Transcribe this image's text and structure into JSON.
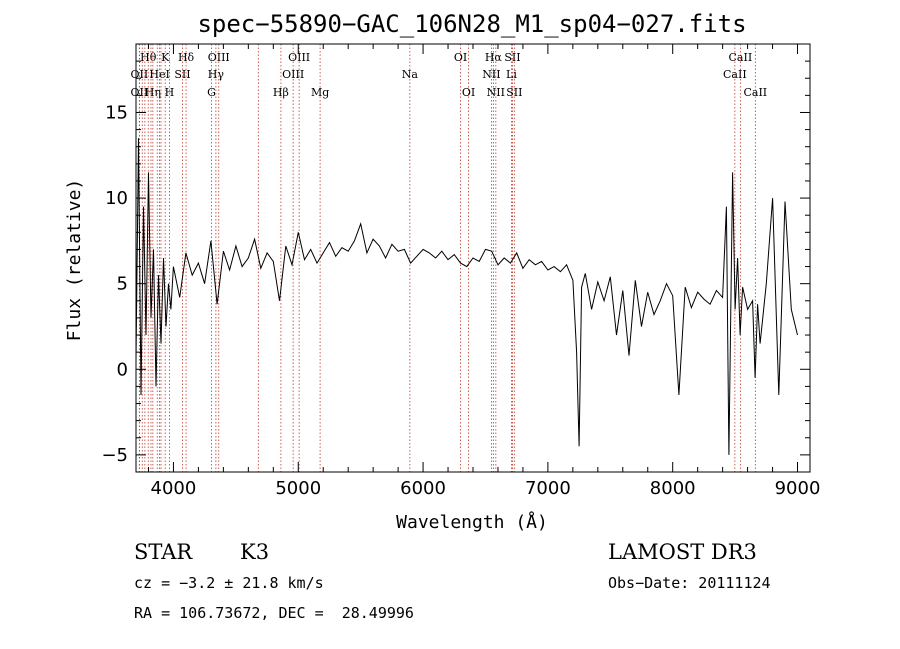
{
  "chart_data": {
    "type": "line",
    "title": "spec−55890−GAC_106N28_M1_sp04−027.fits",
    "xlabel": "Wavelength (Å)",
    "ylabel": "Flux (relative)",
    "xlim": [
      3700,
      9100
    ],
    "ylim": [
      -6,
      19
    ],
    "xticks": [
      4000,
      5000,
      6000,
      7000,
      8000,
      9000
    ],
    "yticks": [
      -5,
      0,
      5,
      10,
      15
    ],
    "spectrum": {
      "name": "flux",
      "x": [
        3700,
        3720,
        3740,
        3760,
        3780,
        3800,
        3820,
        3840,
        3860,
        3880,
        3900,
        3920,
        3940,
        3960,
        3980,
        4000,
        4050,
        4100,
        4150,
        4200,
        4250,
        4300,
        4350,
        4400,
        4450,
        4500,
        4550,
        4600,
        4650,
        4700,
        4750,
        4800,
        4850,
        4900,
        4950,
        5000,
        5050,
        5100,
        5150,
        5200,
        5250,
        5300,
        5350,
        5400,
        5450,
        5500,
        5550,
        5600,
        5650,
        5700,
        5750,
        5800,
        5850,
        5900,
        5950,
        6000,
        6050,
        6100,
        6150,
        6200,
        6250,
        6300,
        6350,
        6400,
        6450,
        6500,
        6550,
        6600,
        6650,
        6700,
        6750,
        6800,
        6850,
        6900,
        6950,
        7000,
        7050,
        7100,
        7150,
        7200,
        7230,
        7250,
        7270,
        7300,
        7350,
        7400,
        7450,
        7500,
        7550,
        7600,
        7650,
        7700,
        7750,
        7800,
        7850,
        7900,
        7950,
        8000,
        8050,
        8100,
        8150,
        8200,
        8250,
        8300,
        8350,
        8400,
        8430,
        8450,
        8480,
        8500,
        8520,
        8540,
        8560,
        8600,
        8640,
        8660,
        8680,
        8700,
        8750,
        8800,
        8850,
        8900,
        8950,
        9000
      ],
      "y": [
        0.5,
        13.5,
        -1.5,
        9.5,
        2.0,
        11.5,
        3.0,
        7.0,
        -1.0,
        5.5,
        1.5,
        6.5,
        2.5,
        5.0,
        3.5,
        6.0,
        4.2,
        6.8,
        5.5,
        6.2,
        5.0,
        7.5,
        3.8,
        6.9,
        5.8,
        7.2,
        6.0,
        6.5,
        7.6,
        5.9,
        6.8,
        6.3,
        4.0,
        7.2,
        6.1,
        8.0,
        6.4,
        7.0,
        6.2,
        6.8,
        7.4,
        6.6,
        7.1,
        6.9,
        7.5,
        8.5,
        6.8,
        7.6,
        7.2,
        6.5,
        7.3,
        6.9,
        7.0,
        6.2,
        6.6,
        7.0,
        6.8,
        6.5,
        6.9,
        6.4,
        6.7,
        6.2,
        6.0,
        6.5,
        6.3,
        7.0,
        6.9,
        6.1,
        6.5,
        6.2,
        6.8,
        5.9,
        6.4,
        6.1,
        6.3,
        5.8,
        6.0,
        5.7,
        6.1,
        5.2,
        1.0,
        -4.5,
        4.8,
        5.6,
        3.5,
        5.1,
        4.0,
        5.4,
        2.0,
        4.6,
        0.8,
        5.2,
        2.5,
        4.5,
        3.2,
        4.0,
        5.0,
        4.3,
        -1.5,
        4.8,
        3.6,
        4.5,
        4.1,
        3.8,
        4.6,
        4.2,
        9.5,
        -5.0,
        11.5,
        3.5,
        6.5,
        2.0,
        4.8,
        3.5,
        4.0,
        -0.5,
        3.8,
        1.5,
        5.0,
        10.0,
        -1.5,
        9.8,
        3.5,
        2.0
      ]
    },
    "spectral_lines": [
      {
        "label": "OII",
        "x": 3727,
        "row": 2
      },
      {
        "label": "Hθ",
        "x": 3798,
        "row": 1
      },
      {
        "label": "OII",
        "x": 3727,
        "row": 3
      },
      {
        "label": "Hη",
        "x": 3835,
        "row": 3
      },
      {
        "label": "K",
        "x": 3934,
        "row": 1
      },
      {
        "label": "HeI",
        "x": 3889,
        "row": 2
      },
      {
        "label": "H",
        "x": 3968,
        "row": 3
      },
      {
        "label": "Hδ",
        "x": 4101,
        "row": 1
      },
      {
        "label": "SII",
        "x": 4072,
        "row": 2
      },
      {
        "label": "OIII",
        "x": 4363,
        "row": 1
      },
      {
        "label": "Hγ",
        "x": 4340,
        "row": 2
      },
      {
        "label": "G",
        "x": 4305,
        "row": 3
      },
      {
        "label": "OIII",
        "x": 5007,
        "row": 1
      },
      {
        "label": "OIII",
        "x": 4959,
        "row": 2
      },
      {
        "label": "Hβ",
        "x": 4861,
        "row": 3
      },
      {
        "label": "Mg",
        "x": 5175,
        "row": 3
      },
      {
        "label": "Na",
        "x": 5894,
        "row": 2
      },
      {
        "label": "OI",
        "x": 6300,
        "row": 1
      },
      {
        "label": "OI",
        "x": 6364,
        "row": 3
      },
      {
        "label": "Hα",
        "x": 6563,
        "row": 1
      },
      {
        "label": "NII",
        "x": 6548,
        "row": 2
      },
      {
        "label": "NII",
        "x": 6583,
        "row": 3
      },
      {
        "label": "SII",
        "x": 6716,
        "row": 1
      },
      {
        "label": "Li",
        "x": 6708,
        "row": 2
      },
      {
        "label": "SII",
        "x": 6731,
        "row": 3
      },
      {
        "label": "CaII",
        "x": 8542,
        "row": 1
      },
      {
        "label": "CaII",
        "x": 8498,
        "row": 2
      },
      {
        "label": "CaII",
        "x": 8662,
        "row": 3
      }
    ],
    "extra_marker_lines": [
      3750,
      3771,
      3820,
      3870,
      3900,
      4680
    ]
  },
  "info": {
    "class": "STAR",
    "subclass": "K3",
    "survey": "LAMOST DR3",
    "cz": "cz = −3.2 ± 21.8 km/s",
    "obs_date": "Obs−Date: 20111124",
    "radec": "RA = 106.73672, DEC =  28.49996"
  }
}
